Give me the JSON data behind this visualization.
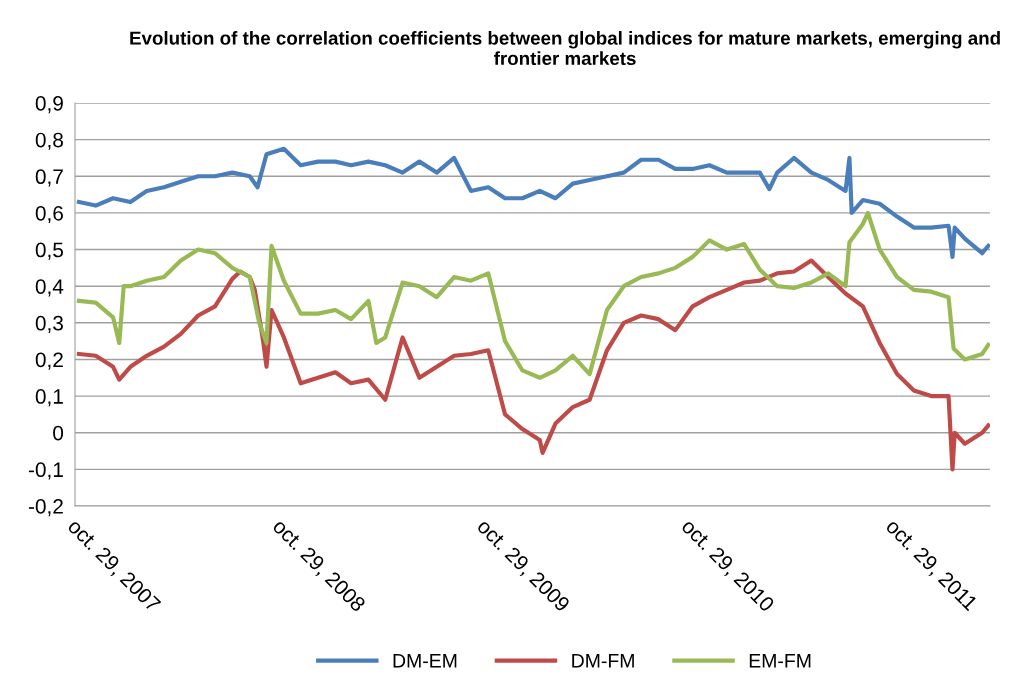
{
  "chart_data": {
    "type": "line",
    "title": "Evolution of the correlation coefficients between global indices for mature markets, emerging and frontier markets",
    "series": [
      {
        "name": "DM-EM",
        "color": "#4a7ebb",
        "x": [
          "2007-11-01",
          "2007-12-01",
          "2008-01-01",
          "2008-02-01",
          "2008-03-01",
          "2008-04-01",
          "2008-05-01",
          "2008-06-01",
          "2008-07-01",
          "2008-08-01",
          "2008-09-01",
          "2008-09-15",
          "2008-10-01",
          "2008-11-01",
          "2008-12-01",
          "2009-01-01",
          "2009-02-01",
          "2009-03-01",
          "2009-04-01",
          "2009-05-01",
          "2009-06-01",
          "2009-07-01",
          "2009-08-01",
          "2009-09-01",
          "2009-10-01",
          "2009-11-01",
          "2009-12-01",
          "2010-01-01",
          "2010-02-01",
          "2010-03-01",
          "2010-04-01",
          "2010-05-01",
          "2010-06-01",
          "2010-07-01",
          "2010-08-01",
          "2010-09-01",
          "2010-10-01",
          "2010-11-01",
          "2010-12-01",
          "2011-01-01",
          "2011-02-01",
          "2011-03-01",
          "2011-03-18",
          "2011-04-01",
          "2011-05-01",
          "2011-06-01",
          "2011-07-01",
          "2011-08-01",
          "2011-08-08",
          "2011-08-12",
          "2011-09-01",
          "2011-10-01",
          "2011-11-01",
          "2011-12-01",
          "2012-01-01",
          "2012-02-01",
          "2012-02-08",
          "2012-02-12",
          "2012-03-01",
          "2012-04-01",
          "2012-04-12"
        ],
        "values": [
          0.63,
          0.62,
          0.64,
          0.63,
          0.66,
          0.67,
          0.685,
          0.7,
          0.7,
          0.71,
          0.7,
          0.67,
          0.76,
          0.775,
          0.73,
          0.74,
          0.74,
          0.73,
          0.74,
          0.73,
          0.71,
          0.74,
          0.71,
          0.75,
          0.66,
          0.67,
          0.64,
          0.64,
          0.66,
          0.64,
          0.68,
          0.69,
          0.7,
          0.71,
          0.745,
          0.745,
          0.72,
          0.72,
          0.73,
          0.71,
          0.71,
          0.71,
          0.665,
          0.71,
          0.75,
          0.71,
          0.69,
          0.66,
          0.75,
          0.6,
          0.635,
          0.625,
          0.59,
          0.56,
          0.56,
          0.565,
          0.48,
          0.56,
          0.53,
          0.49,
          0.51
        ]
      },
      {
        "name": "DM-FM",
        "color": "#be4b48",
        "x": [
          "2007-11-01",
          "2007-12-01",
          "2008-01-01",
          "2008-01-12",
          "2008-02-01",
          "2008-03-01",
          "2008-04-01",
          "2008-05-01",
          "2008-06-01",
          "2008-07-01",
          "2008-08-01",
          "2008-08-15",
          "2008-09-01",
          "2008-09-10",
          "2008-09-25",
          "2008-10-01",
          "2008-10-10",
          "2008-11-01",
          "2008-12-01",
          "2009-01-01",
          "2009-02-01",
          "2009-03-01",
          "2009-04-01",
          "2009-05-01",
          "2009-06-01",
          "2009-07-01",
          "2009-08-01",
          "2009-09-01",
          "2009-10-01",
          "2009-11-01",
          "2009-12-01",
          "2010-01-01",
          "2010-02-01",
          "2010-02-06",
          "2010-03-01",
          "2010-04-01",
          "2010-05-01",
          "2010-06-01",
          "2010-07-01",
          "2010-08-01",
          "2010-09-01",
          "2010-10-01",
          "2010-11-01",
          "2010-12-01",
          "2011-01-01",
          "2011-02-01",
          "2011-03-01",
          "2011-04-01",
          "2011-05-01",
          "2011-06-01",
          "2011-07-01",
          "2011-08-01",
          "2011-09-01",
          "2011-10-01",
          "2011-11-01",
          "2011-12-01",
          "2012-01-01",
          "2012-02-01",
          "2012-02-08",
          "2012-02-12",
          "2012-03-01",
          "2012-04-01",
          "2012-04-12"
        ],
        "values": [
          0.215,
          0.21,
          0.18,
          0.145,
          0.18,
          0.21,
          0.235,
          0.27,
          0.32,
          0.345,
          0.42,
          0.44,
          0.425,
          0.39,
          0.25,
          0.18,
          0.335,
          0.26,
          0.135,
          0.15,
          0.165,
          0.135,
          0.145,
          0.09,
          0.26,
          0.15,
          0.18,
          0.21,
          0.215,
          0.225,
          0.05,
          0.01,
          -0.02,
          -0.055,
          0.025,
          0.07,
          0.09,
          0.225,
          0.3,
          0.32,
          0.31,
          0.28,
          0.345,
          0.37,
          0.39,
          0.41,
          0.415,
          0.435,
          0.44,
          0.47,
          0.425,
          0.38,
          0.345,
          0.245,
          0.16,
          0.115,
          0.1,
          0.1,
          -0.1,
          0.0,
          -0.03,
          0.0,
          0.02
        ]
      },
      {
        "name": "EM-FM",
        "color": "#98b954",
        "x": [
          "2007-11-01",
          "2007-12-01",
          "2008-01-01",
          "2008-01-12",
          "2008-01-20",
          "2008-02-01",
          "2008-03-01",
          "2008-04-01",
          "2008-05-01",
          "2008-06-01",
          "2008-07-01",
          "2008-08-01",
          "2008-09-01",
          "2008-09-18",
          "2008-10-01",
          "2008-10-10",
          "2008-11-01",
          "2008-12-01",
          "2009-01-01",
          "2009-02-01",
          "2009-03-01",
          "2009-04-01",
          "2009-04-15",
          "2009-05-01",
          "2009-06-01",
          "2009-07-01",
          "2009-08-01",
          "2009-09-01",
          "2009-10-01",
          "2009-11-01",
          "2009-12-01",
          "2010-01-01",
          "2010-02-01",
          "2010-03-01",
          "2010-04-01",
          "2010-05-01",
          "2010-06-01",
          "2010-07-01",
          "2010-08-01",
          "2010-09-01",
          "2010-10-01",
          "2010-11-01",
          "2010-12-01",
          "2011-01-01",
          "2011-02-01",
          "2011-03-01",
          "2011-04-01",
          "2011-05-01",
          "2011-06-01",
          "2011-07-01",
          "2011-08-01",
          "2011-08-08",
          "2011-09-01",
          "2011-09-10",
          "2011-10-01",
          "2011-11-01",
          "2011-12-01",
          "2012-01-01",
          "2012-02-01",
          "2012-02-10",
          "2012-03-01",
          "2012-04-01",
          "2012-04-12"
        ],
        "values": [
          0.36,
          0.355,
          0.315,
          0.245,
          0.4,
          0.4,
          0.415,
          0.425,
          0.47,
          0.5,
          0.49,
          0.45,
          0.425,
          0.3,
          0.245,
          0.51,
          0.415,
          0.325,
          0.325,
          0.335,
          0.31,
          0.36,
          0.245,
          0.26,
          0.41,
          0.4,
          0.37,
          0.425,
          0.415,
          0.435,
          0.25,
          0.17,
          0.15,
          0.17,
          0.21,
          0.16,
          0.335,
          0.4,
          0.425,
          0.435,
          0.45,
          0.48,
          0.525,
          0.5,
          0.515,
          0.445,
          0.4,
          0.395,
          0.41,
          0.435,
          0.4,
          0.52,
          0.57,
          0.6,
          0.5,
          0.425,
          0.39,
          0.385,
          0.37,
          0.23,
          0.2,
          0.215,
          0.24
        ]
      }
    ],
    "xlim": [
      "2007-10-25",
      "2012-04-15"
    ],
    "xticks": [
      {
        "value": "2007-10-29",
        "label": "oct. 29, 2007"
      },
      {
        "value": "2008-10-29",
        "label": "oct. 29, 2008"
      },
      {
        "value": "2009-10-29",
        "label": "oct. 29, 2009"
      },
      {
        "value": "2010-10-29",
        "label": "oct. 29, 2010"
      },
      {
        "value": "2011-10-29",
        "label": "oct. 29, 2011"
      }
    ],
    "ylim": [
      -0.2,
      0.9
    ],
    "yticks": [
      {
        "value": -0.2,
        "label": "-0,2"
      },
      {
        "value": -0.1,
        "label": "-0,1"
      },
      0,
      {
        "value": 0.1,
        "label": "0,1"
      },
      {
        "value": 0.2,
        "label": "0,2"
      },
      {
        "value": 0.3,
        "label": "0,3"
      },
      {
        "value": 0.4,
        "label": "0,4"
      },
      {
        "value": 0.5,
        "label": "0,5"
      },
      {
        "value": 0.6,
        "label": "0,6"
      },
      {
        "value": 0.7,
        "label": "0,7"
      },
      {
        "value": 0.8,
        "label": "0,8"
      },
      {
        "value": 0.9,
        "label": "0,9"
      }
    ],
    "grid": "y",
    "legend": "bottom",
    "marker": "none",
    "line_style": "solid"
  }
}
